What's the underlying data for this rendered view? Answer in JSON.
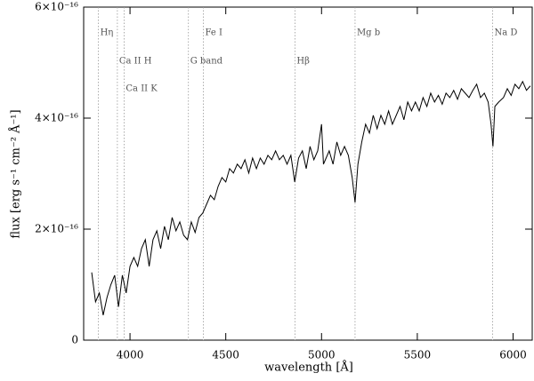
{
  "chart_data": {
    "type": "line",
    "xlabel": "wavelength [Å]",
    "ylabel": "flux [erg s⁻¹ cm⁻² Å⁻¹]",
    "xlim": [
      3758,
      6100
    ],
    "ylim": [
      0,
      6e-16
    ],
    "xticks": [
      4000,
      4500,
      5000,
      5500,
      6000
    ],
    "yticks": [
      0,
      {
        "value": 2e-16,
        "label": "2×10⁻¹⁶"
      },
      {
        "value": 4e-16,
        "label": "4×10⁻¹⁶"
      },
      {
        "value": 6e-16,
        "label": "6×10⁻¹⁶"
      }
    ],
    "color": "#000000",
    "lines": [
      {
        "label": "Hη",
        "x": 3835
      },
      {
        "label": "Ca II H",
        "x": 3934
      },
      {
        "label": "Ca II K",
        "x": 3969
      },
      {
        "label": "G band",
        "x": 4305
      },
      {
        "label": "Fe I",
        "x": 4383
      },
      {
        "label": "Hβ",
        "x": 4861
      },
      {
        "label": "Mg b",
        "x": 5175
      },
      {
        "label": "Na D",
        "x": 5893
      }
    ],
    "x": [
      3800,
      3820,
      3840,
      3860,
      3880,
      3900,
      3920,
      3940,
      3960,
      3980,
      4000,
      4020,
      4040,
      4060,
      4080,
      4100,
      4120,
      4140,
      4160,
      4180,
      4200,
      4220,
      4240,
      4260,
      4280,
      4300,
      4320,
      4340,
      4360,
      4380,
      4400,
      4420,
      4440,
      4460,
      4480,
      4500,
      4520,
      4540,
      4560,
      4580,
      4600,
      4620,
      4640,
      4660,
      4680,
      4700,
      4720,
      4740,
      4760,
      4780,
      4800,
      4820,
      4840,
      4860,
      4880,
      4900,
      4920,
      4940,
      4960,
      4980,
      5000,
      5010,
      5020,
      5040,
      5060,
      5080,
      5100,
      5120,
      5140,
      5160,
      5175,
      5190,
      5210,
      5230,
      5250,
      5270,
      5290,
      5310,
      5330,
      5350,
      5370,
      5390,
      5410,
      5430,
      5450,
      5470,
      5490,
      5510,
      5530,
      5550,
      5570,
      5590,
      5610,
      5630,
      5650,
      5670,
      5690,
      5710,
      5730,
      5750,
      5770,
      5790,
      5810,
      5830,
      5850,
      5870,
      5885,
      5895,
      5905,
      5925,
      5950,
      5970,
      5990,
      6010,
      6030,
      6050,
      6070,
      6090
    ],
    "values": [
      1.22e-16,
      6.9e-17,
      8.5e-17,
      4.5e-17,
      7.7e-17,
      1e-16,
      1.17e-16,
      6e-17,
      1.17e-16,
      8.5e-17,
      1.33e-16,
      1.49e-16,
      1.33e-16,
      1.65e-16,
      1.81e-16,
      1.33e-16,
      1.81e-16,
      1.97e-16,
      1.65e-16,
      2.05e-16,
      1.81e-16,
      2.21e-16,
      1.97e-16,
      2.13e-16,
      1.89e-16,
      1.81e-16,
      2.13e-16,
      1.94e-16,
      2.21e-16,
      2.29e-16,
      2.45e-16,
      2.61e-16,
      2.53e-16,
      2.77e-16,
      2.93e-16,
      2.85e-16,
      3.09e-16,
      3.01e-16,
      3.17e-16,
      3.09e-16,
      3.25e-16,
      3.01e-16,
      3.28e-16,
      3.09e-16,
      3.28e-16,
      3.17e-16,
      3.33e-16,
      3.25e-16,
      3.41e-16,
      3.25e-16,
      3.33e-16,
      3.17e-16,
      3.33e-16,
      2.85e-16,
      3.28e-16,
      3.41e-16,
      3.09e-16,
      3.49e-16,
      3.25e-16,
      3.41e-16,
      3.89e-16,
      3.17e-16,
      3.25e-16,
      3.41e-16,
      3.17e-16,
      3.57e-16,
      3.33e-16,
      3.49e-16,
      3.33e-16,
      2.93e-16,
      2.48e-16,
      3.17e-16,
      3.57e-16,
      3.89e-16,
      3.73e-16,
      4.05e-16,
      3.81e-16,
      4.05e-16,
      3.89e-16,
      4.13e-16,
      3.89e-16,
      4.05e-16,
      4.21e-16,
      3.97e-16,
      4.29e-16,
      4.13e-16,
      4.29e-16,
      4.13e-16,
      4.37e-16,
      4.21e-16,
      4.45e-16,
      4.29e-16,
      4.41e-16,
      4.25e-16,
      4.45e-16,
      4.37e-16,
      4.5e-16,
      4.34e-16,
      4.53e-16,
      4.45e-16,
      4.37e-16,
      4.5e-16,
      4.61e-16,
      4.37e-16,
      4.45e-16,
      4.29e-16,
      3.89e-16,
      3.49e-16,
      4.21e-16,
      4.29e-16,
      4.37e-16,
      4.53e-16,
      4.41e-16,
      4.61e-16,
      4.53e-16,
      4.66e-16,
      4.5e-16,
      4.58e-16
    ]
  }
}
